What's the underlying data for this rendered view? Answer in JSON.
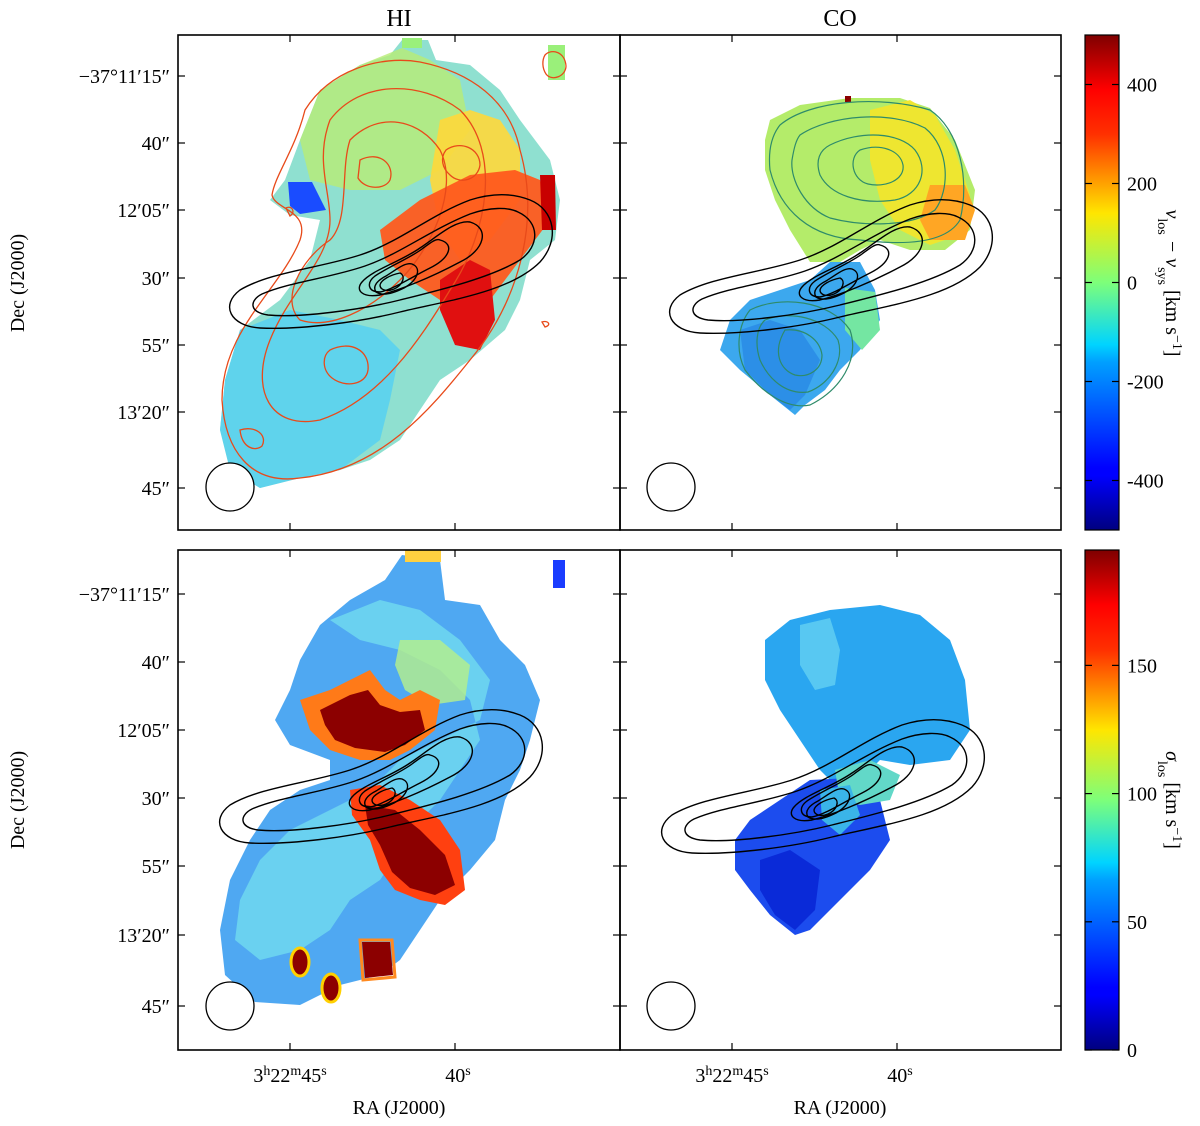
{
  "figure": {
    "panel_titles": [
      "HI",
      "CO"
    ],
    "ylabel": "Dec (J2000)",
    "xlabel": "RA (J2000)",
    "dec_ticks": [
      "−37°11′15″",
      "40″",
      "12′05″",
      "30″",
      "55″",
      "13′20″",
      "45″"
    ],
    "ra_ticks": [
      {
        "h": "3",
        "hu": "h",
        "m": "22",
        "mu": "m",
        "s": "45",
        "su": "s"
      },
      {
        "s": "40",
        "su": "s"
      }
    ]
  },
  "colorbars": [
    {
      "name": "velocity",
      "label_main": "v",
      "label_sub1": "los",
      "label_mid": " − v",
      "label_sub2": "sys",
      "label_units": " [km s",
      "label_exp": "−1",
      "label_close": "]",
      "range": [
        -500,
        500
      ],
      "ticks": [
        "400",
        "200",
        "0",
        "-200",
        "-400"
      ],
      "tick_values": [
        400,
        200,
        0,
        -200,
        -400
      ],
      "colormap": "jet"
    },
    {
      "name": "dispersion",
      "label_main": "σ",
      "label_sub1": "los",
      "label_units": " [km s",
      "label_exp": "−1",
      "label_close": "]",
      "range": [
        0,
        195
      ],
      "ticks": [
        "150",
        "100",
        "50",
        "0"
      ],
      "tick_values": [
        150,
        100,
        50,
        0
      ],
      "colormap": "jet"
    }
  ],
  "chart_data": [
    {
      "type": "heatmap",
      "title": "HI",
      "quantity": "v_los - v_sys [km/s]",
      "range": [
        -500,
        500
      ],
      "features": "Rotating HI disk: north/west side redshifted (~+200 to +400 km/s), south/east side blueshifted (~-200 km/s); patch near -400 km/s on north-east edge; red HI intensity contours and black radio continuum contours overlaid; beam ellipse lower-left"
    },
    {
      "type": "heatmap",
      "title": "CO",
      "quantity": "v_los - v_sys [km/s]",
      "range": [
        -500,
        500
      ],
      "features": "CO velocity field: northern lobe ~0 to +200 km/s, southern lobe ~-200 km/s; green CO intensity contours and black radio continuum contours overlaid; beam ellipse lower-left"
    },
    {
      "type": "heatmap",
      "title": "",
      "quantity": "sigma_los [km/s]",
      "range": [
        0,
        195
      ],
      "features": "HI dispersion mostly 40-80 km/s with saturated >190 km/s regions north and south of the nucleus and small compact blobs in the south; black continuum contours"
    },
    {
      "type": "heatmap",
      "title": "",
      "quantity": "sigma_los [km/s]",
      "range": [
        0,
        195
      ],
      "features": "CO dispersion mostly 10-50 km/s with enhanced values (~70-100 km/s) near the nucleus and a northern patch; black continuum contours"
    }
  ]
}
